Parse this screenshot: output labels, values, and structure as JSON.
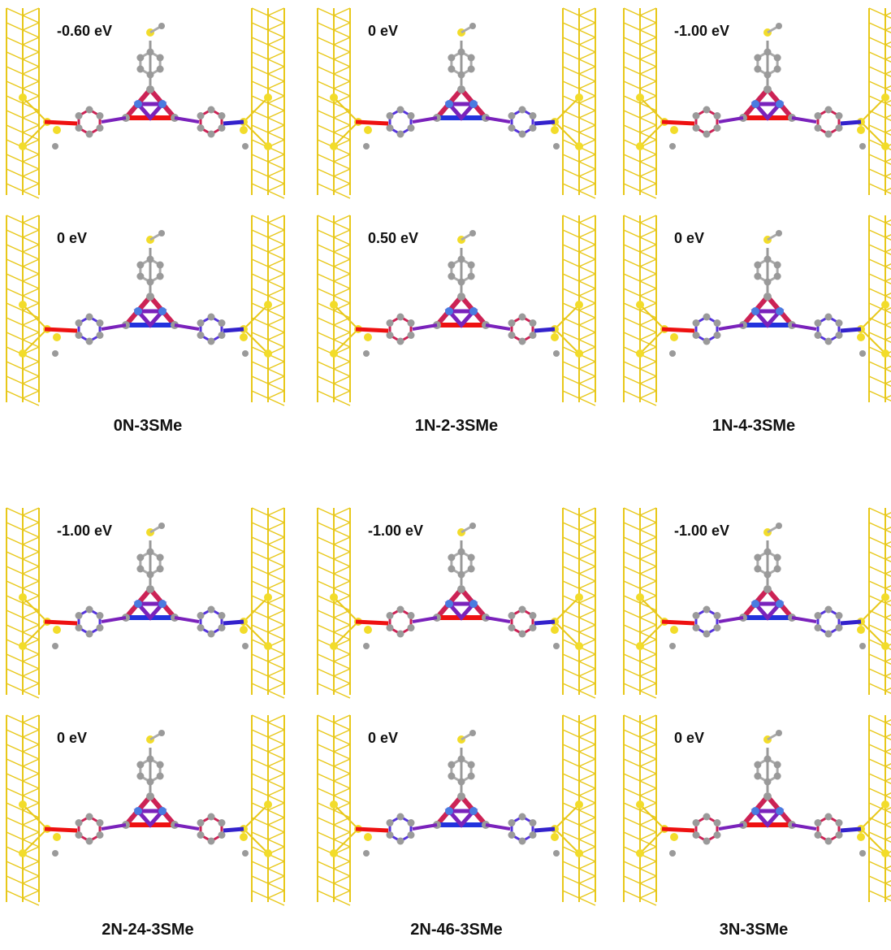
{
  "groups": [
    {
      "caption": "0N-3SMe",
      "panels": [
        {
          "energy": "-0.60 eV"
        },
        {
          "energy": "0 eV"
        }
      ]
    },
    {
      "caption": "1N-2-3SMe",
      "panels": [
        {
          "energy": "0 eV"
        },
        {
          "energy": "0.50 eV"
        }
      ]
    },
    {
      "caption": "1N-4-3SMe",
      "panels": [
        {
          "energy": "-1.00 eV"
        },
        {
          "energy": "0 eV"
        }
      ]
    },
    {
      "caption": "2N-24-3SMe",
      "panels": [
        {
          "energy": "-1.00 eV"
        },
        {
          "energy": "0 eV"
        }
      ]
    },
    {
      "caption": "2N-46-3SMe",
      "panels": [
        {
          "energy": "-1.00 eV"
        },
        {
          "energy": "0 eV"
        }
      ]
    },
    {
      "caption": "3N-3SMe",
      "panels": [
        {
          "energy": "-1.00 eV"
        },
        {
          "energy": "0 eV"
        }
      ]
    }
  ]
}
